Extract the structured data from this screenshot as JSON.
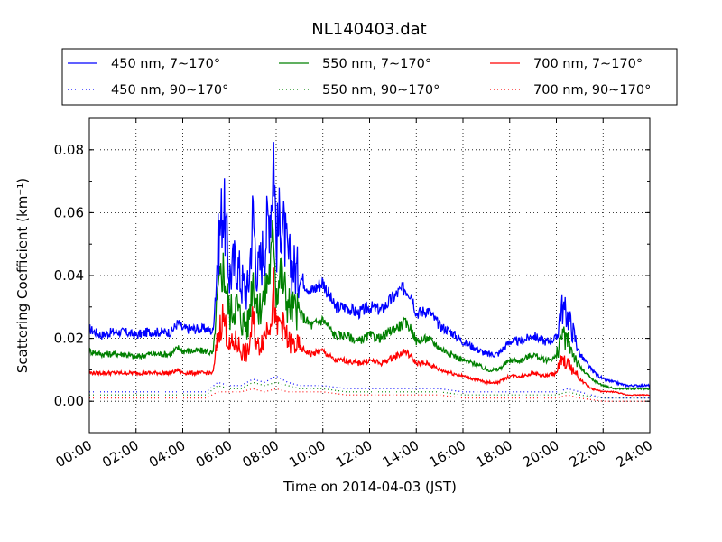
{
  "chart_data": {
    "type": "line",
    "title": "NL140403.dat",
    "xlabel": "Time on 2014-04-03 (JST)",
    "ylabel": "Scattering Coefficient (km⁻¹)",
    "xlim": [
      0,
      24
    ],
    "ylim": [
      -0.01,
      0.09
    ],
    "xticks": [
      "00:00",
      "02:00",
      "04:00",
      "06:00",
      "08:00",
      "10:00",
      "12:00",
      "14:00",
      "16:00",
      "18:00",
      "20:00",
      "22:00",
      "24:00"
    ],
    "yticks": [
      "0.00",
      "0.02",
      "0.04",
      "0.06",
      "0.08"
    ],
    "grid": true,
    "legend_position": "top",
    "series": [
      {
        "name": "450 nm, 7∼170°",
        "color": "#0000ff",
        "style": "solid",
        "x": [
          0,
          0.5,
          1,
          1.5,
          2,
          2.5,
          3,
          3.5,
          3.8,
          4,
          4.5,
          5,
          5.3,
          5.5,
          5.7,
          5.8,
          6,
          6.3,
          6.5,
          6.8,
          7,
          7.2,
          7.5,
          7.8,
          7.9,
          8,
          8.2,
          8.5,
          9,
          9.5,
          10,
          10.5,
          11,
          11.5,
          12,
          12.5,
          13,
          13.3,
          13.5,
          13.8,
          14,
          14.5,
          15,
          15.5,
          16,
          16.5,
          17,
          17.5,
          18,
          18.5,
          19,
          19.5,
          20,
          20.2,
          20.5,
          20.8,
          21,
          21.5,
          22,
          22.5,
          23,
          23.5,
          24
        ],
        "y": [
          0.023,
          0.021,
          0.022,
          0.022,
          0.021,
          0.022,
          0.022,
          0.022,
          0.025,
          0.023,
          0.023,
          0.023,
          0.022,
          0.048,
          0.062,
          0.058,
          0.04,
          0.045,
          0.038,
          0.035,
          0.06,
          0.04,
          0.05,
          0.065,
          0.083,
          0.05,
          0.06,
          0.045,
          0.04,
          0.035,
          0.038,
          0.03,
          0.03,
          0.028,
          0.03,
          0.029,
          0.033,
          0.035,
          0.036,
          0.034,
          0.028,
          0.029,
          0.024,
          0.022,
          0.019,
          0.017,
          0.015,
          0.015,
          0.019,
          0.019,
          0.021,
          0.019,
          0.02,
          0.03,
          0.027,
          0.02,
          0.015,
          0.01,
          0.007,
          0.006,
          0.005,
          0.005,
          0.005
        ]
      },
      {
        "name": "550 nm, 7∼170°",
        "color": "#008000",
        "style": "solid",
        "x": [
          0,
          0.5,
          1,
          1.5,
          2,
          2.5,
          3,
          3.5,
          3.8,
          4,
          4.5,
          5,
          5.3,
          5.5,
          5.7,
          5.8,
          6,
          6.3,
          6.5,
          6.8,
          7,
          7.2,
          7.5,
          7.8,
          7.9,
          8,
          8.2,
          8.5,
          9,
          9.5,
          10,
          10.5,
          11,
          11.5,
          12,
          12.5,
          13,
          13.3,
          13.5,
          13.8,
          14,
          14.5,
          15,
          15.5,
          16,
          16.5,
          17,
          17.5,
          18,
          18.5,
          19,
          19.5,
          20,
          20.2,
          20.5,
          20.8,
          21,
          21.5,
          22,
          22.5,
          23,
          23.5,
          24
        ],
        "y": [
          0.016,
          0.015,
          0.015,
          0.015,
          0.014,
          0.015,
          0.015,
          0.015,
          0.017,
          0.016,
          0.016,
          0.016,
          0.015,
          0.033,
          0.043,
          0.04,
          0.028,
          0.031,
          0.026,
          0.024,
          0.041,
          0.028,
          0.034,
          0.045,
          0.057,
          0.035,
          0.041,
          0.031,
          0.028,
          0.024,
          0.026,
          0.021,
          0.021,
          0.019,
          0.021,
          0.02,
          0.023,
          0.024,
          0.025,
          0.023,
          0.019,
          0.02,
          0.017,
          0.015,
          0.013,
          0.012,
          0.01,
          0.01,
          0.013,
          0.013,
          0.015,
          0.013,
          0.014,
          0.021,
          0.019,
          0.014,
          0.011,
          0.007,
          0.005,
          0.004,
          0.004,
          0.004,
          0.004
        ]
      },
      {
        "name": "700 nm, 7∼170°",
        "color": "#ff0000",
        "style": "solid",
        "x": [
          0,
          0.5,
          1,
          1.5,
          2,
          2.5,
          3,
          3.5,
          3.8,
          4,
          4.5,
          5,
          5.3,
          5.5,
          5.7,
          5.8,
          6,
          6.3,
          6.5,
          6.8,
          7,
          7.2,
          7.5,
          7.8,
          7.9,
          8,
          8.2,
          8.5,
          9,
          9.5,
          10,
          10.5,
          11,
          11.5,
          12,
          12.5,
          13,
          13.3,
          13.5,
          13.8,
          14,
          14.5,
          15,
          15.5,
          16,
          16.5,
          17,
          17.5,
          18,
          18.5,
          19,
          19.5,
          20,
          20.2,
          20.5,
          20.8,
          21,
          21.5,
          22,
          22.5,
          23,
          23.5,
          24
        ],
        "y": [
          0.009,
          0.009,
          0.009,
          0.009,
          0.009,
          0.009,
          0.009,
          0.009,
          0.01,
          0.009,
          0.009,
          0.009,
          0.009,
          0.02,
          0.027,
          0.025,
          0.017,
          0.019,
          0.016,
          0.015,
          0.026,
          0.017,
          0.021,
          0.028,
          0.036,
          0.022,
          0.026,
          0.019,
          0.017,
          0.015,
          0.016,
          0.013,
          0.013,
          0.012,
          0.013,
          0.012,
          0.014,
          0.015,
          0.016,
          0.014,
          0.012,
          0.012,
          0.01,
          0.009,
          0.008,
          0.007,
          0.006,
          0.006,
          0.008,
          0.008,
          0.009,
          0.008,
          0.009,
          0.013,
          0.012,
          0.009,
          0.007,
          0.004,
          0.003,
          0.003,
          0.002,
          0.002,
          0.002
        ]
      },
      {
        "name": "450 nm, 90∼170°",
        "color": "#0000ff",
        "style": "dotted",
        "x": [
          0,
          1,
          2,
          3,
          4,
          5,
          5.5,
          6,
          6.5,
          7,
          7.5,
          8,
          8.5,
          9,
          10,
          11,
          12,
          13,
          14,
          15,
          16,
          17,
          18,
          19,
          20,
          20.5,
          21,
          22,
          23,
          24
        ],
        "y": [
          0.003,
          0.003,
          0.003,
          0.003,
          0.003,
          0.003,
          0.006,
          0.005,
          0.005,
          0.007,
          0.006,
          0.008,
          0.006,
          0.005,
          0.005,
          0.004,
          0.004,
          0.004,
          0.004,
          0.004,
          0.003,
          0.003,
          0.003,
          0.003,
          0.003,
          0.004,
          0.003,
          0.001,
          0.001,
          0.001
        ]
      },
      {
        "name": "550 nm, 90∼170°",
        "color": "#008000",
        "style": "dotted",
        "x": [
          0,
          1,
          2,
          3,
          4,
          5,
          5.5,
          6,
          6.5,
          7,
          7.5,
          8,
          8.5,
          9,
          10,
          11,
          12,
          13,
          14,
          15,
          16,
          17,
          18,
          19,
          20,
          20.5,
          21,
          22,
          23,
          24
        ],
        "y": [
          0.002,
          0.002,
          0.002,
          0.002,
          0.002,
          0.002,
          0.005,
          0.004,
          0.004,
          0.006,
          0.005,
          0.006,
          0.005,
          0.004,
          0.004,
          0.003,
          0.003,
          0.003,
          0.003,
          0.003,
          0.002,
          0.002,
          0.002,
          0.002,
          0.002,
          0.003,
          0.002,
          0.001,
          0.001,
          0.001
        ]
      },
      {
        "name": "700 nm, 90∼170°",
        "color": "#ff0000",
        "style": "dotted",
        "x": [
          0,
          1,
          2,
          3,
          4,
          5,
          5.5,
          6,
          6.5,
          7,
          7.5,
          8,
          8.5,
          9,
          10,
          11,
          12,
          13,
          14,
          15,
          16,
          17,
          18,
          19,
          20,
          20.5,
          21,
          22,
          23,
          24
        ],
        "y": [
          0.001,
          0.001,
          0.001,
          0.001,
          0.001,
          0.001,
          0.003,
          0.003,
          0.003,
          0.004,
          0.003,
          0.004,
          0.003,
          0.003,
          0.003,
          0.002,
          0.002,
          0.002,
          0.002,
          0.002,
          0.001,
          0.001,
          0.001,
          0.001,
          0.001,
          0.002,
          0.001,
          0.0,
          0.0,
          0.0
        ]
      }
    ]
  }
}
